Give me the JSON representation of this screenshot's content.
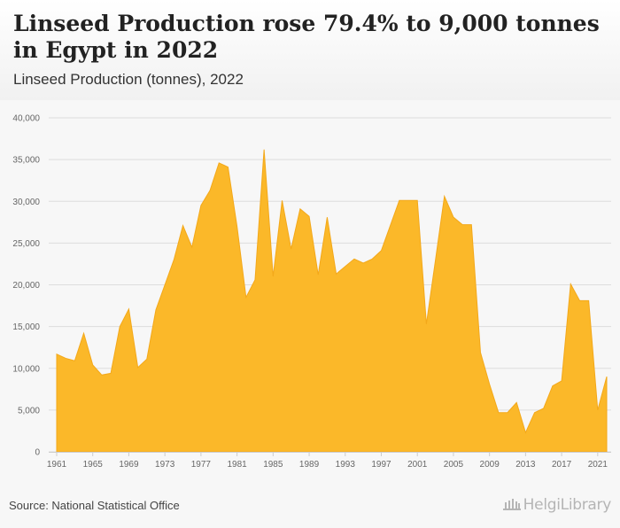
{
  "header": {
    "title": "Linseed Production rose 79.4% to 9,000 tonnes in Egypt in 2022",
    "subtitle": "Linseed Production (tonnes), 2022"
  },
  "footer": {
    "source": "Source: National Statistical Office",
    "logo_text": "HelgiLibrary",
    "logo_icon": "library-building-icon"
  },
  "colors": {
    "area_fill": "#fbb829",
    "area_stroke": "#f3a81a",
    "grid": "#dddddd"
  },
  "chart_data": {
    "type": "area",
    "title": "Linseed Production rose 79.4% to 9,000 tonnes in Egypt in 2022",
    "subtitle": "Linseed Production (tonnes), 2022",
    "xlabel": "",
    "ylabel": "",
    "ylim": [
      0,
      40000
    ],
    "grid": true,
    "y_ticks": [
      {
        "value": 0,
        "label": "0"
      },
      {
        "value": 5000,
        "label": "5,000"
      },
      {
        "value": 10000,
        "label": "10,000"
      },
      {
        "value": 15000,
        "label": "15,000"
      },
      {
        "value": 20000,
        "label": "20,000"
      },
      {
        "value": 25000,
        "label": "25,000"
      },
      {
        "value": 30000,
        "label": "30,000"
      },
      {
        "value": 35000,
        "label": "35,000"
      },
      {
        "value": 40000,
        "label": "40,000"
      }
    ],
    "x_ticks": [
      "1961",
      "1965",
      "1969",
      "1973",
      "1977",
      "1981",
      "1985",
      "1989",
      "1993",
      "1997",
      "2001",
      "2005",
      "2009",
      "2013",
      "2017",
      "2021"
    ],
    "x": [
      1961,
      1962,
      1963,
      1964,
      1965,
      1966,
      1967,
      1968,
      1969,
      1970,
      1971,
      1972,
      1973,
      1974,
      1975,
      1976,
      1977,
      1978,
      1979,
      1980,
      1981,
      1982,
      1983,
      1984,
      1985,
      1986,
      1987,
      1988,
      1989,
      1990,
      1991,
      1992,
      1993,
      1994,
      1995,
      1996,
      1997,
      1998,
      1999,
      2000,
      2001,
      2002,
      2003,
      2004,
      2005,
      2006,
      2007,
      2008,
      2009,
      2010,
      2011,
      2012,
      2013,
      2014,
      2015,
      2016,
      2017,
      2018,
      2019,
      2020,
      2021,
      2022
    ],
    "series": [
      {
        "values": [
          11700,
          11200,
          10900,
          14200,
          10400,
          9200,
          9400,
          15000,
          17100,
          10100,
          11100,
          17000,
          20000,
          23000,
          27100,
          24500,
          29500,
          31300,
          34600,
          34100,
          27000,
          18500,
          20600,
          36200,
          21000,
          30100,
          24300,
          29100,
          28200,
          21200,
          28100,
          21300,
          22200,
          23100,
          22600,
          23100,
          24100,
          27100,
          30100,
          30100,
          30100,
          15300,
          22900,
          30600,
          28100,
          27200,
          27200,
          11900,
          8100,
          4700,
          4700,
          5900,
          2300,
          4700,
          5200,
          7900,
          8500,
          20100,
          18100,
          18100,
          5000,
          9000
        ]
      }
    ]
  }
}
